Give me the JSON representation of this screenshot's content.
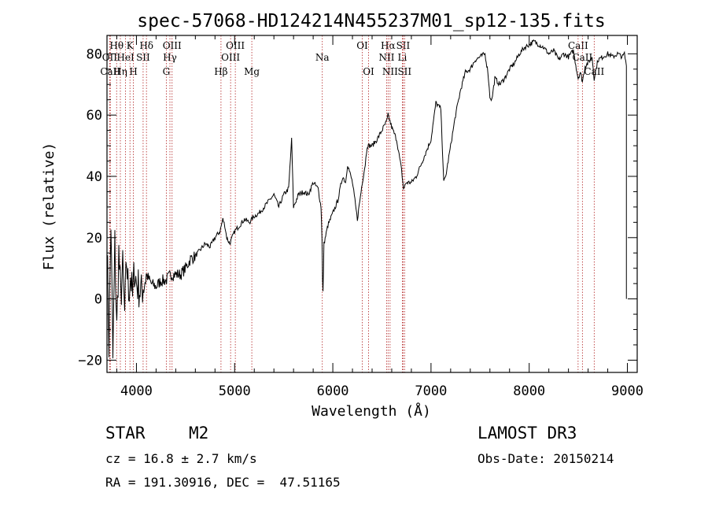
{
  "chart_data": {
    "type": "line",
    "title": "spec-57068-HD124214N455237M01_sp12-135.fits",
    "xlabel": "Wavelength (Å)",
    "ylabel": "Flux (relative)",
    "xlim": [
      3700,
      9100
    ],
    "ylim": [
      -24,
      86
    ],
    "xticks": [
      4000,
      5000,
      6000,
      7000,
      8000,
      9000
    ],
    "yticks": [
      -20,
      0,
      20,
      40,
      60,
      80
    ],
    "series": [
      {
        "name": "spectrum",
        "x": [
          3700,
          3720,
          3740,
          3760,
          3780,
          3800,
          3820,
          3840,
          3860,
          3880,
          3900,
          3920,
          3940,
          3960,
          3980,
          4000,
          4050,
          4100,
          4150,
          4200,
          4250,
          4300,
          4350,
          4400,
          4450,
          4500,
          4550,
          4600,
          4650,
          4700,
          4750,
          4800,
          4850,
          4880,
          4900,
          4920,
          4950,
          5000,
          5050,
          5100,
          5150,
          5200,
          5250,
          5300,
          5350,
          5400,
          5450,
          5500,
          5550,
          5580,
          5600,
          5650,
          5700,
          5750,
          5800,
          5850,
          5880,
          5890,
          5895,
          5900,
          5910,
          5950,
          6000,
          6050,
          6100,
          6130,
          6150,
          6200,
          6250,
          6300,
          6330,
          6350,
          6400,
          6450,
          6500,
          6550,
          6563,
          6600,
          6650,
          6700,
          6720,
          6750,
          6800,
          6850,
          6900,
          6950,
          7000,
          7050,
          7100,
          7130,
          7150,
          7200,
          7250,
          7300,
          7350,
          7400,
          7450,
          7500,
          7550,
          7580,
          7600,
          7620,
          7650,
          7700,
          7750,
          7800,
          7850,
          7900,
          7950,
          8000,
          8050,
          8100,
          8150,
          8200,
          8250,
          8300,
          8350,
          8400,
          8450,
          8498,
          8520,
          8542,
          8570,
          8600,
          8640,
          8662,
          8700,
          8750,
          8800,
          8850,
          8900,
          8950,
          8970,
          8990
        ],
        "y": [
          20,
          -15,
          25,
          -20,
          18,
          -10,
          15,
          0,
          10,
          -5,
          12,
          2,
          8,
          0,
          10,
          5,
          2,
          8,
          5,
          4,
          6,
          6,
          8,
          8,
          8,
          10,
          13,
          14,
          16,
          18,
          17,
          20,
          22,
          26,
          24,
          20,
          18,
          22,
          24,
          26,
          25,
          27,
          28,
          30,
          32,
          34,
          30,
          34,
          36,
          52,
          30,
          34,
          35,
          34,
          38,
          36,
          30,
          20,
          6,
          2,
          18,
          24,
          28,
          32,
          40,
          38,
          44,
          38,
          26,
          38,
          44,
          50,
          50,
          52,
          55,
          58,
          60,
          56,
          52,
          42,
          36,
          38,
          38,
          40,
          44,
          48,
          52,
          64,
          62,
          38,
          40,
          50,
          60,
          68,
          74,
          75,
          78,
          79,
          80,
          74,
          66,
          65,
          72,
          70,
          72,
          75,
          77,
          80,
          82,
          83,
          84,
          83,
          82,
          80,
          81,
          78,
          80,
          79,
          81,
          72,
          74,
          71,
          76,
          77,
          79,
          72,
          78,
          79,
          80,
          79,
          80,
          79,
          80,
          76
        ]
      }
    ],
    "spectral_lines": [
      {
        "label": "Hθ",
        "wl": 3798,
        "row": 1
      },
      {
        "label": "OII",
        "wl": 3727,
        "row": 2
      },
      {
        "label": "CaII",
        "wl": 3734,
        "row": 3
      },
      {
        "label": "Hη",
        "wl": 3836,
        "row": 3
      },
      {
        "label": "HeI",
        "wl": 3889,
        "row": 2
      },
      {
        "label": "K",
        "wl": 3934,
        "row": 1
      },
      {
        "label": "SII",
        "wl": 4068,
        "row": 2
      },
      {
        "label": "H",
        "wl": 3969,
        "row": 3
      },
      {
        "label": "Hδ",
        "wl": 4102,
        "row": 1
      },
      {
        "label": "OIII",
        "wl": 4363,
        "row": 1
      },
      {
        "label": "Hγ",
        "wl": 4341,
        "row": 2
      },
      {
        "label": "G",
        "wl": 4304,
        "row": 3
      },
      {
        "label": "Hβ",
        "wl": 4861,
        "row": 3
      },
      {
        "label": "OIII",
        "wl": 5007,
        "row": 1
      },
      {
        "label": "OIII",
        "wl": 4959,
        "row": 2
      },
      {
        "label": "Mg",
        "wl": 5175,
        "row": 3
      },
      {
        "label": "Na",
        "wl": 5893,
        "row": 2
      },
      {
        "label": "OI",
        "wl": 6300,
        "row": 1
      },
      {
        "label": "OI",
        "wl": 6364,
        "row": 3
      },
      {
        "label": "Hα",
        "wl": 6563,
        "row": 1
      },
      {
        "label": "NII",
        "wl": 6548,
        "row": 2
      },
      {
        "label": "NII",
        "wl": 6583,
        "row": 3
      },
      {
        "label": "SII",
        "wl": 6716,
        "row": 1
      },
      {
        "label": "Li",
        "wl": 6708,
        "row": 2
      },
      {
        "label": "SII",
        "wl": 6731,
        "row": 3
      },
      {
        "label": "CaII",
        "wl": 8498,
        "row": 1
      },
      {
        "label": "CaII",
        "wl": 8542,
        "row": 2
      },
      {
        "label": "CaII",
        "wl": 8662,
        "row": 3
      }
    ]
  },
  "info": {
    "class": "STAR",
    "subclass": "M2",
    "survey": "LAMOST DR3",
    "cz": "cz = 16.8 ± 2.7 km/s",
    "obs_date": "Obs-Date: 20150214",
    "coords": "RA = 191.30916, DEC =  47.51165"
  },
  "colors": {
    "line": "#000000",
    "marker": "#b22222"
  }
}
